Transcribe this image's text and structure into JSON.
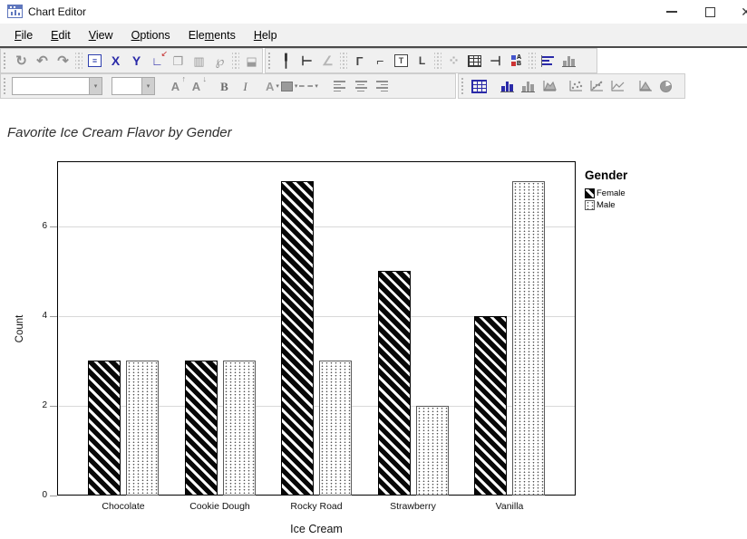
{
  "window": {
    "title": "Chart Editor",
    "icon": "chart-editor-app-icon",
    "controls": [
      {
        "name": "minimize-button",
        "glyph": "–"
      },
      {
        "name": "maximize-button",
        "glyph": "□"
      },
      {
        "name": "close-button",
        "glyph": "✕"
      }
    ]
  },
  "menu": {
    "items": [
      {
        "label": "File",
        "accel_index": 0
      },
      {
        "label": "Edit",
        "accel_index": 0
      },
      {
        "label": "View",
        "accel_index": 0
      },
      {
        "label": "Options",
        "accel_index": 0
      },
      {
        "label": "Elements",
        "accel_index": 3
      },
      {
        "label": "Help",
        "accel_index": 0
      }
    ]
  },
  "toolbars": {
    "row1_panels": [
      [
        {
          "n": "refresh-icon",
          "t": "glyph",
          "g": "↻",
          "c": "#8f8f8f",
          "fs": 15,
          "b": true
        },
        {
          "n": "undo-icon",
          "t": "glyph",
          "g": "↶",
          "c": "#8f8f8f",
          "fs": 15,
          "b": true
        },
        {
          "n": "redo-icon",
          "t": "glyph",
          "g": "↷",
          "c": "#8f8f8f",
          "fs": 15,
          "b": true
        },
        {
          "t": "sep"
        },
        {
          "n": "properties-icon",
          "t": "boxed",
          "g": "≡",
          "c": "#2e3fae"
        },
        {
          "n": "select-x-axis-icon",
          "t": "glyph",
          "g": "X",
          "c": "#2a2aa8",
          "fs": 14,
          "b": true
        },
        {
          "n": "select-y-axis-icon",
          "t": "glyph",
          "g": "Y",
          "c": "#2a2aa8",
          "fs": 14,
          "b": true
        },
        {
          "n": "swap-axes-icon",
          "t": "overlay",
          "g": "∟",
          "c": "#2a2aa8",
          "fs": 13,
          "b": true,
          "o": "↙",
          "oc": "#c22222"
        },
        {
          "n": "transpose-chart-icon",
          "t": "glyph",
          "g": "❐",
          "c": "#979797",
          "fs": 13
        },
        {
          "n": "rotate-3d-icon",
          "t": "glyph",
          "g": "▥",
          "c": "#979797",
          "fs": 13
        },
        {
          "n": "lasso-select-icon",
          "t": "glyph",
          "g": "℘",
          "c": "#979797",
          "fs": 14
        },
        {
          "t": "sep"
        },
        {
          "n": "annotation-icon",
          "t": "glyph",
          "g": "⬓",
          "c": "#9a9a9a",
          "fs": 13
        }
      ],
      [
        {
          "n": "y-reference-line-icon",
          "t": "glyph",
          "g": "╿",
          "c": "#2f2f2f",
          "fs": 14,
          "b": true
        },
        {
          "n": "x-reference-line-icon",
          "t": "glyph",
          "g": "⊢",
          "c": "#2f2f2f",
          "fs": 14,
          "b": true
        },
        {
          "n": "diagonal-reference-line-icon",
          "t": "glyph",
          "g": "∠",
          "c": "#b5b5b5",
          "fs": 14,
          "b": true
        },
        {
          "t": "sep"
        },
        {
          "n": "title-icon",
          "t": "glyph",
          "g": "Γ",
          "c": "#444444",
          "fs": 13,
          "b": true
        },
        {
          "n": "subtitle-icon",
          "t": "glyph",
          "g": "⌐",
          "c": "#444444",
          "fs": 14,
          "b": true
        },
        {
          "n": "text-box-icon",
          "t": "boxed",
          "g": "T",
          "c": "#444444"
        },
        {
          "n": "footnote-icon",
          "t": "glyph",
          "g": "L",
          "c": "#444444",
          "fs": 12,
          "b": true
        },
        {
          "t": "sep"
        },
        {
          "n": "grid-dots-icon",
          "t": "glyph",
          "g": "⁘",
          "c": "#b0b0b0",
          "fs": 15,
          "b": true
        },
        {
          "n": "grid-lines-icon",
          "t": "grid",
          "c": "#3a3a3a"
        },
        {
          "n": "secondary-axis-icon",
          "t": "glyph",
          "g": "⊣",
          "c": "#2f2f2f",
          "fs": 14,
          "b": true
        },
        {
          "n": "legend-icon",
          "t": "ab"
        },
        {
          "t": "sep"
        },
        {
          "n": "data-labels-icon",
          "t": "hbars",
          "c": "#2a2aa8"
        },
        {
          "n": "column-chart-icon",
          "t": "vbars",
          "c": "#9a9a9a"
        }
      ]
    ],
    "row2_panels": [
      [
        {
          "n": "font-family-combo",
          "t": "combo",
          "w": 100
        },
        {
          "t": "gap",
          "w": 8
        },
        {
          "n": "font-size-combo",
          "t": "combo",
          "w": 48
        },
        {
          "t": "gap",
          "w": 10
        },
        {
          "n": "increase-font-icon",
          "t": "overlay",
          "g": "A",
          "c": "#8a8a8a",
          "fs": 13,
          "b": true,
          "o": "↑",
          "oc": "#8a8a8a"
        },
        {
          "n": "decrease-font-icon",
          "t": "overlay",
          "g": "A",
          "c": "#8a8a8a",
          "fs": 13,
          "b": true,
          "o": "↓",
          "oc": "#8a8a8a"
        },
        {
          "t": "gap",
          "w": 8
        },
        {
          "n": "bold-icon",
          "t": "glyph",
          "g": "B",
          "c": "#6a6a6a",
          "fs": 13,
          "b": true,
          "serif": true
        },
        {
          "n": "italic-icon",
          "t": "glyph",
          "g": "I",
          "c": "#6a6a6a",
          "fs": 13,
          "i": true,
          "serif": true
        },
        {
          "t": "gap",
          "w": 10
        },
        {
          "n": "font-color-icon",
          "t": "drop",
          "g": "A",
          "c": "#9a9a9a"
        },
        {
          "n": "fill-color-icon",
          "t": "swatchdrop",
          "c": "#9a9a9a"
        },
        {
          "n": "line-style-icon",
          "t": "linedrop",
          "c": "#9a9a9a"
        },
        {
          "t": "gap",
          "w": 12
        },
        {
          "n": "align-left-icon",
          "t": "align",
          "v": "left"
        },
        {
          "n": "align-center-icon",
          "t": "align",
          "v": "center"
        },
        {
          "n": "align-right-icon",
          "t": "align",
          "v": "right"
        }
      ],
      [
        {
          "n": "pivot-grid-icon",
          "t": "grid",
          "c": "#2a2aa8",
          "big": true
        },
        {
          "t": "gap",
          "w": 8
        },
        {
          "n": "bar-chart-icon",
          "t": "vbars",
          "c": "#2a2aa8"
        },
        {
          "n": "bar-3d-chart-icon",
          "t": "vbars",
          "c": "#9a9a9a"
        },
        {
          "n": "area-chart-icon",
          "t": "area"
        },
        {
          "t": "gap",
          "w": 6
        },
        {
          "n": "scatter-chart-icon",
          "t": "scatter"
        },
        {
          "n": "scatter-line-chart-icon",
          "t": "scatterline"
        },
        {
          "n": "line-chart-icon",
          "t": "linechart"
        },
        {
          "t": "gap",
          "w": 8
        },
        {
          "n": "histogram-icon",
          "t": "hist"
        },
        {
          "n": "pie-chart-icon",
          "t": "pie"
        }
      ]
    ]
  },
  "chart_data": {
    "type": "bar",
    "title": "Favorite Ice Cream Flavor by Gender",
    "categories": [
      "Chocolate",
      "Cookie Dough",
      "Rocky Road",
      "Strawberry",
      "Vanilla"
    ],
    "series": [
      {
        "name": "Female",
        "pattern": "diagonal-hatch",
        "color": "#000000",
        "values": [
          3,
          3,
          7,
          5,
          4
        ]
      },
      {
        "name": "Male",
        "pattern": "dots",
        "color": "#ffffff",
        "values": [
          3,
          3,
          3,
          2,
          7
        ]
      }
    ],
    "xlabel": "Ice Cream",
    "ylabel": "Count",
    "yticks": [
      0,
      2,
      4,
      6
    ],
    "ylim": [
      0,
      7.45
    ],
    "grid": true,
    "gridline_color": "#d9d9d9",
    "legend_title": "Gender",
    "legend_position": "right"
  }
}
